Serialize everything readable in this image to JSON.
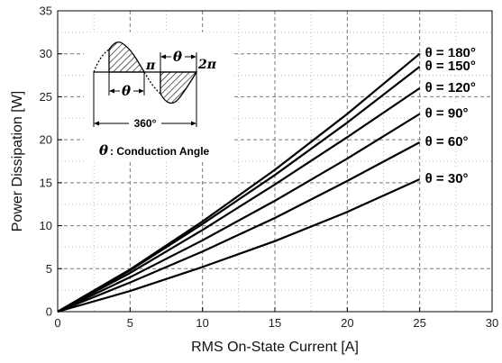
{
  "chart_data": {
    "type": "line",
    "title": "",
    "xlabel": "RMS On-State Current [A]",
    "ylabel": "Power Dissipation [W]",
    "xlim": [
      0,
      30
    ],
    "ylim": [
      0,
      35
    ],
    "xticks": [
      0,
      5,
      10,
      15,
      20,
      25,
      30
    ],
    "yticks": [
      0,
      5,
      10,
      15,
      20,
      25,
      30,
      35
    ],
    "grid": true,
    "series": [
      {
        "name": "θ = 180°",
        "x": [
          0,
          5,
          10,
          15,
          20,
          25
        ],
        "y": [
          0,
          4.9,
          10.5,
          16.5,
          23.0,
          30.0
        ]
      },
      {
        "name": "θ = 150°",
        "x": [
          0,
          5,
          10,
          15,
          20,
          25
        ],
        "y": [
          0,
          4.8,
          10.2,
          15.9,
          22.0,
          28.5
        ]
      },
      {
        "name": "θ = 120°",
        "x": [
          0,
          5,
          10,
          15,
          20,
          25
        ],
        "y": [
          0,
          4.5,
          9.5,
          14.8,
          20.3,
          26.0
        ]
      },
      {
        "name": "θ = 90°",
        "x": [
          0,
          5,
          10,
          15,
          20,
          25
        ],
        "y": [
          0,
          4.0,
          8.3,
          12.9,
          17.8,
          23.0
        ]
      },
      {
        "name": "θ = 60°",
        "x": [
          0,
          5,
          10,
          15,
          20,
          25
        ],
        "y": [
          0,
          3.4,
          7.0,
          10.9,
          15.2,
          19.7
        ]
      },
      {
        "name": "θ = 30°",
        "x": [
          0,
          5,
          10,
          15,
          20,
          25
        ],
        "y": [
          0,
          2.4,
          5.2,
          8.2,
          11.6,
          15.4
        ]
      }
    ],
    "series_labels": [
      {
        "text": "θ = 180°",
        "y": 30.0
      },
      {
        "text": "θ = 150°",
        "y": 28.5
      },
      {
        "text": "θ = 120°",
        "y": 26.0
      },
      {
        "text": "θ = 90°",
        "y": 23.0
      },
      {
        "text": "θ = 60°",
        "y": 19.7
      },
      {
        "text": "θ = 30°",
        "y": 15.4
      }
    ],
    "inset": {
      "pi_label": "π",
      "two_pi_label": "2π",
      "theta_symbol": "θ",
      "period_label": "360°",
      "legend_text": ": Conduction Angle"
    }
  }
}
